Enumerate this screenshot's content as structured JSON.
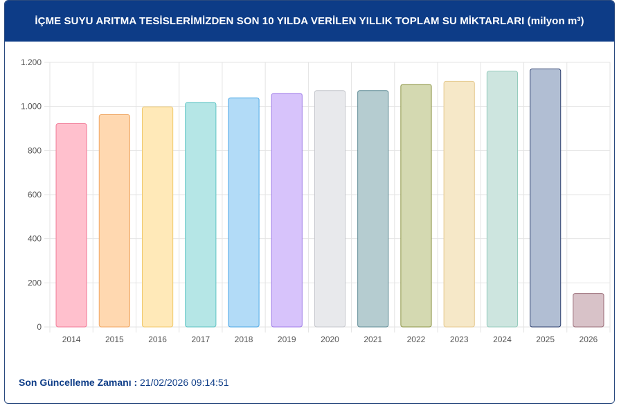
{
  "header": {
    "title": "İÇME SUYU ARITMA TESİSLERİMİZDEN SON 10 YILDA VERİLEN YILLIK TOPLAM SU MİKTARLARI (milyon m³)"
  },
  "footer": {
    "label": "Son Güncelleme Zamanı :",
    "value": "21/02/2026 09:14:51"
  },
  "chart_data": {
    "type": "bar",
    "categories": [
      "2014",
      "2015",
      "2016",
      "2017",
      "2018",
      "2019",
      "2020",
      "2021",
      "2022",
      "2023",
      "2024",
      "2025",
      "2026"
    ],
    "values": [
      922,
      963,
      998,
      1018,
      1039,
      1059,
      1072,
      1072,
      1100,
      1114,
      1160,
      1170,
      152
    ],
    "ylim": [
      0,
      1200
    ],
    "yticks": [
      0,
      200,
      400,
      600,
      800,
      1000,
      1200
    ],
    "ytick_labels": [
      "0",
      "200",
      "400",
      "600",
      "800",
      "1.000",
      "1.200"
    ],
    "grid": true,
    "colors": [
      {
        "fill": "#ffc0cd",
        "stroke": "#f27a97"
      },
      {
        "fill": "#ffd8b0",
        "stroke": "#f0a560"
      },
      {
        "fill": "#ffe9b8",
        "stroke": "#f0c86a"
      },
      {
        "fill": "#b5e6e6",
        "stroke": "#5cc3c3"
      },
      {
        "fill": "#b2dbf7",
        "stroke": "#4aa7e6"
      },
      {
        "fill": "#d7c3fb",
        "stroke": "#a07ee8"
      },
      {
        "fill": "#e8e9ec",
        "stroke": "#c4c6cc"
      },
      {
        "fill": "#b5ccd0",
        "stroke": "#5f8c96"
      },
      {
        "fill": "#d4d9b1",
        "stroke": "#8d9547"
      },
      {
        "fill": "#f6e8c8",
        "stroke": "#e5c98e"
      },
      {
        "fill": "#cde5df",
        "stroke": "#95cbbd"
      },
      {
        "fill": "#b1bed3",
        "stroke": "#2d3f6e"
      },
      {
        "fill": "#d8c2c8",
        "stroke": "#9a6d78"
      }
    ]
  }
}
